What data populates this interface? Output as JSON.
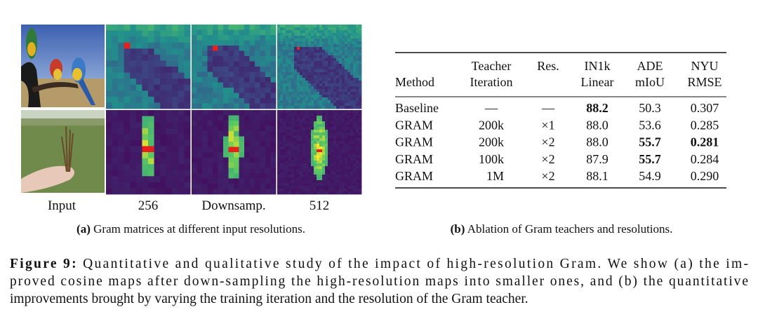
{
  "panel_a": {
    "column_labels": [
      "Input",
      "256",
      "Downsamp.",
      "512"
    ],
    "caption_label": "(a)",
    "caption_text": "Gram matrices at different input resolutions."
  },
  "panel_b": {
    "header": [
      [
        "Method"
      ],
      [
        "Teacher",
        "Iteration"
      ],
      [
        "Res."
      ],
      [
        "IN1k",
        "Linear"
      ],
      [
        "ADE",
        "mIoU"
      ],
      [
        "NYU",
        "RMSE"
      ]
    ],
    "rows": [
      [
        "Baseline",
        "—",
        "—",
        "88.2",
        "50.3",
        "0.307"
      ],
      [
        "GRAM",
        "200k",
        "×1",
        "88.0",
        "53.6",
        "0.285"
      ],
      [
        "GRAM",
        "200k",
        "×2",
        "88.0",
        "55.7",
        "0.281"
      ],
      [
        "GRAM",
        "100k",
        "×2",
        "87.9",
        "55.7",
        "0.284"
      ],
      [
        "GRAM",
        "1M",
        "×2",
        "88.1",
        "54.9",
        "0.290"
      ]
    ],
    "bold_cells": [
      "0.3",
      "2.4",
      "2.5",
      "3.4"
    ],
    "caption_label": "(b)",
    "caption_text": "Ablation of Gram teachers and resolutions."
  },
  "figure": {
    "label": "Figure 9:",
    "lines": [
      "Quantitative and qualitative study of the impact of high-resolution Gram. We show (a) the im-",
      "proved cosine maps after down-sampling the high-resolution maps into smaller ones, and (b) the quantitative",
      "improvements brought by varying the training iteration and the resolution of the Gram teacher."
    ]
  }
}
